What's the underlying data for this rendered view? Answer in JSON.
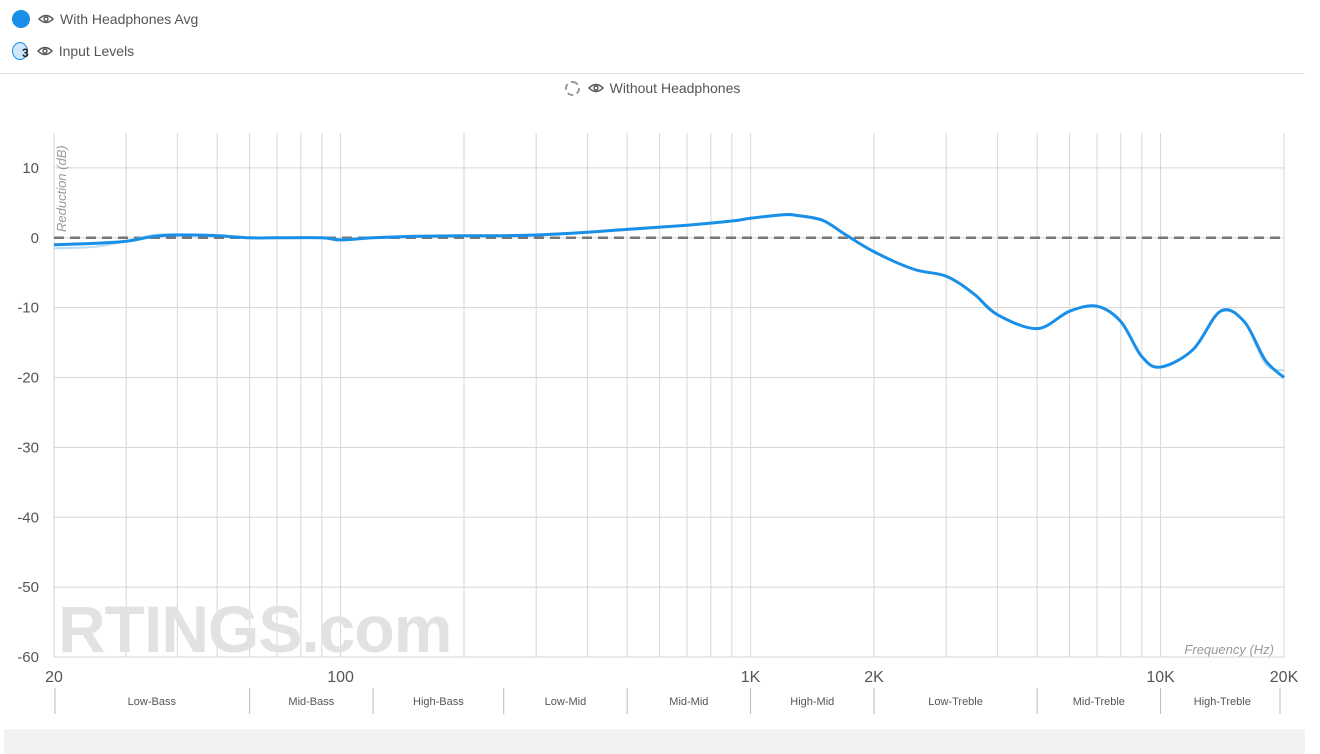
{
  "legend": {
    "with_headphones": "With Headphones Avg",
    "input_levels_count": "3",
    "input_levels": "Input Levels",
    "without_headphones": "Without Headphones"
  },
  "watermark": "RTINGS.com",
  "colors": {
    "series": "#1a8fe8",
    "series_light": "#b6dcf7",
    "reference": "#666666",
    "grid": "#d0d0d0"
  },
  "icons": [
    "eye-icon"
  ],
  "chart_data": {
    "type": "line",
    "x_scale": "log",
    "xlabel": "Frequency (Hz)",
    "ylabel": "Reduction (dB)",
    "xlim": [
      20,
      20000
    ],
    "ylim": [
      -60,
      15
    ],
    "y_ticks": [
      10,
      0,
      -10,
      -20,
      -30,
      -40,
      -50,
      -60
    ],
    "x_tick_labels": [
      {
        "v": 20,
        "t": "20"
      },
      {
        "v": 100,
        "t": "100"
      },
      {
        "v": 1000,
        "t": "1K"
      },
      {
        "v": 2000,
        "t": "2K"
      },
      {
        "v": 10000,
        "t": "10K"
      },
      {
        "v": 20000,
        "t": "20K"
      }
    ],
    "bands": [
      {
        "name": "Low-Bass",
        "from": 20,
        "to": 60
      },
      {
        "name": "Mid-Bass",
        "from": 60,
        "to": 120
      },
      {
        "name": "High-Bass",
        "from": 120,
        "to": 250
      },
      {
        "name": "Low-Mid",
        "from": 250,
        "to": 500
      },
      {
        "name": "Mid-Mid",
        "from": 500,
        "to": 1000
      },
      {
        "name": "High-Mid",
        "from": 1000,
        "to": 2000
      },
      {
        "name": "Low-Treble",
        "from": 2000,
        "to": 5000
      },
      {
        "name": "Mid-Treble",
        "from": 5000,
        "to": 10000
      },
      {
        "name": "High-Treble",
        "from": 10000,
        "to": 20000
      }
    ],
    "series": [
      {
        "name": "With Headphones Avg",
        "x": [
          20,
          25,
          30,
          35,
          40,
          50,
          60,
          70,
          90,
          100,
          120,
          150,
          200,
          250,
          300,
          400,
          500,
          700,
          900,
          1000,
          1200,
          1300,
          1500,
          1700,
          2000,
          2500,
          3000,
          3500,
          4000,
          5000,
          6000,
          7000,
          8000,
          9000,
          10000,
          12000,
          14000,
          16000,
          18000,
          20000
        ],
        "y": [
          -1,
          -0.8,
          -0.5,
          0.2,
          0.4,
          0.3,
          0,
          0,
          0,
          -0.3,
          0,
          0.2,
          0.3,
          0.3,
          0.4,
          0.8,
          1.2,
          1.8,
          2.4,
          2.8,
          3.3,
          3.2,
          2.5,
          0.5,
          -2,
          -4.5,
          -5.5,
          -8,
          -11,
          -13,
          -10.5,
          -9.8,
          -12,
          -17,
          -18.5,
          -16,
          -10.5,
          -12,
          -17.5,
          -20
        ]
      },
      {
        "name": "Input Levels",
        "x": [
          20,
          25,
          30,
          35,
          40,
          50,
          60,
          70,
          90,
          100,
          120,
          150,
          200,
          250,
          300,
          400,
          500,
          700,
          900,
          1000,
          1200,
          1300,
          1500,
          1700,
          2000,
          2500,
          3000,
          3500,
          4000,
          5000,
          6000,
          7000,
          8000,
          9000,
          10000,
          12000,
          14000,
          16000,
          18000,
          20000
        ],
        "y": [
          -1.5,
          -1.3,
          -0.5,
          0.4,
          0.5,
          0.4,
          0,
          0,
          0,
          -0.2,
          0,
          0.3,
          0.3,
          0.3,
          0.5,
          0.8,
          1.3,
          1.8,
          2.4,
          2.8,
          3.2,
          3.1,
          2.4,
          0.4,
          -2,
          -4.5,
          -5.5,
          -8,
          -11,
          -13,
          -10.5,
          -9.8,
          -12,
          -17,
          -18.5,
          -16,
          -10.5,
          -12,
          -18,
          -19
        ]
      },
      {
        "name": "Without Headphones",
        "x": [
          20,
          20000
        ],
        "y": [
          0,
          0
        ]
      }
    ]
  }
}
